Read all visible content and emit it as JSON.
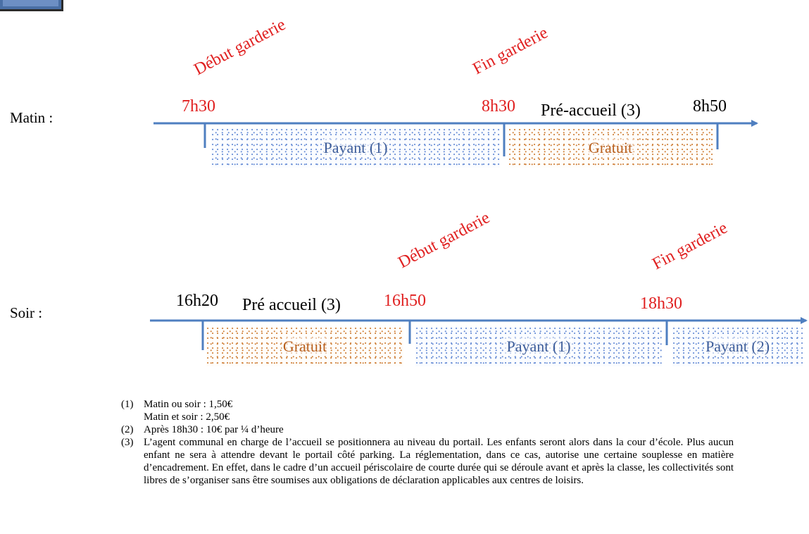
{
  "labels": {
    "matin": "Matin :",
    "soir": "Soir :"
  },
  "matin": {
    "debut_rotated": "Début garderie",
    "fin_rotated": "Fin garderie",
    "t1": "7h30",
    "t2": "8h30",
    "pre_accueil": "Pré-accueil (3)",
    "t3": "8h50",
    "seg_payant": "Payant (1)",
    "seg_gratuit": "Gratuit"
  },
  "soir": {
    "debut_rotated": "Début garderie",
    "fin_rotated": "Fin garderie",
    "t1": "16h20",
    "pre_accueil": "Pré accueil (3)",
    "t2": "16h50",
    "t3": "18h30",
    "seg_gratuit": "Gratuit",
    "seg_payant1": "Payant (1)",
    "seg_payant2": "Payant (2)"
  },
  "notes": [
    {
      "num": "(1)",
      "lines": [
        "Matin ou soir : 1,50€",
        "Matin et soir : 2,50€"
      ]
    },
    {
      "num": "(2)",
      "lines": [
        "Après 18h30 : 10€ par ¼ d’heure"
      ]
    },
    {
      "num": "(3)",
      "lines": [
        "L’agent communal en charge de l’accueil se positionnera au niveau du portail. Les enfants seront alors dans la cour d’école. Plus aucun enfant ne sera à attendre devant le portail côté parking. La réglementation, dans ce cas, autorise une certaine souplesse en matière d’encadrement. En effet, dans le cadre d’un accueil périscolaire de courte durée qui se déroule avant et après la classe, les collectivités sont libres de s’organiser sans être soumises aux obligations de déclaration applicables aux centres de loisirs."
      ]
    }
  ],
  "colors": {
    "axis": "#4f7fc0",
    "red": "#e02020",
    "blue_hatch": "#6a8fd6",
    "orange_hatch": "#d0823c"
  }
}
